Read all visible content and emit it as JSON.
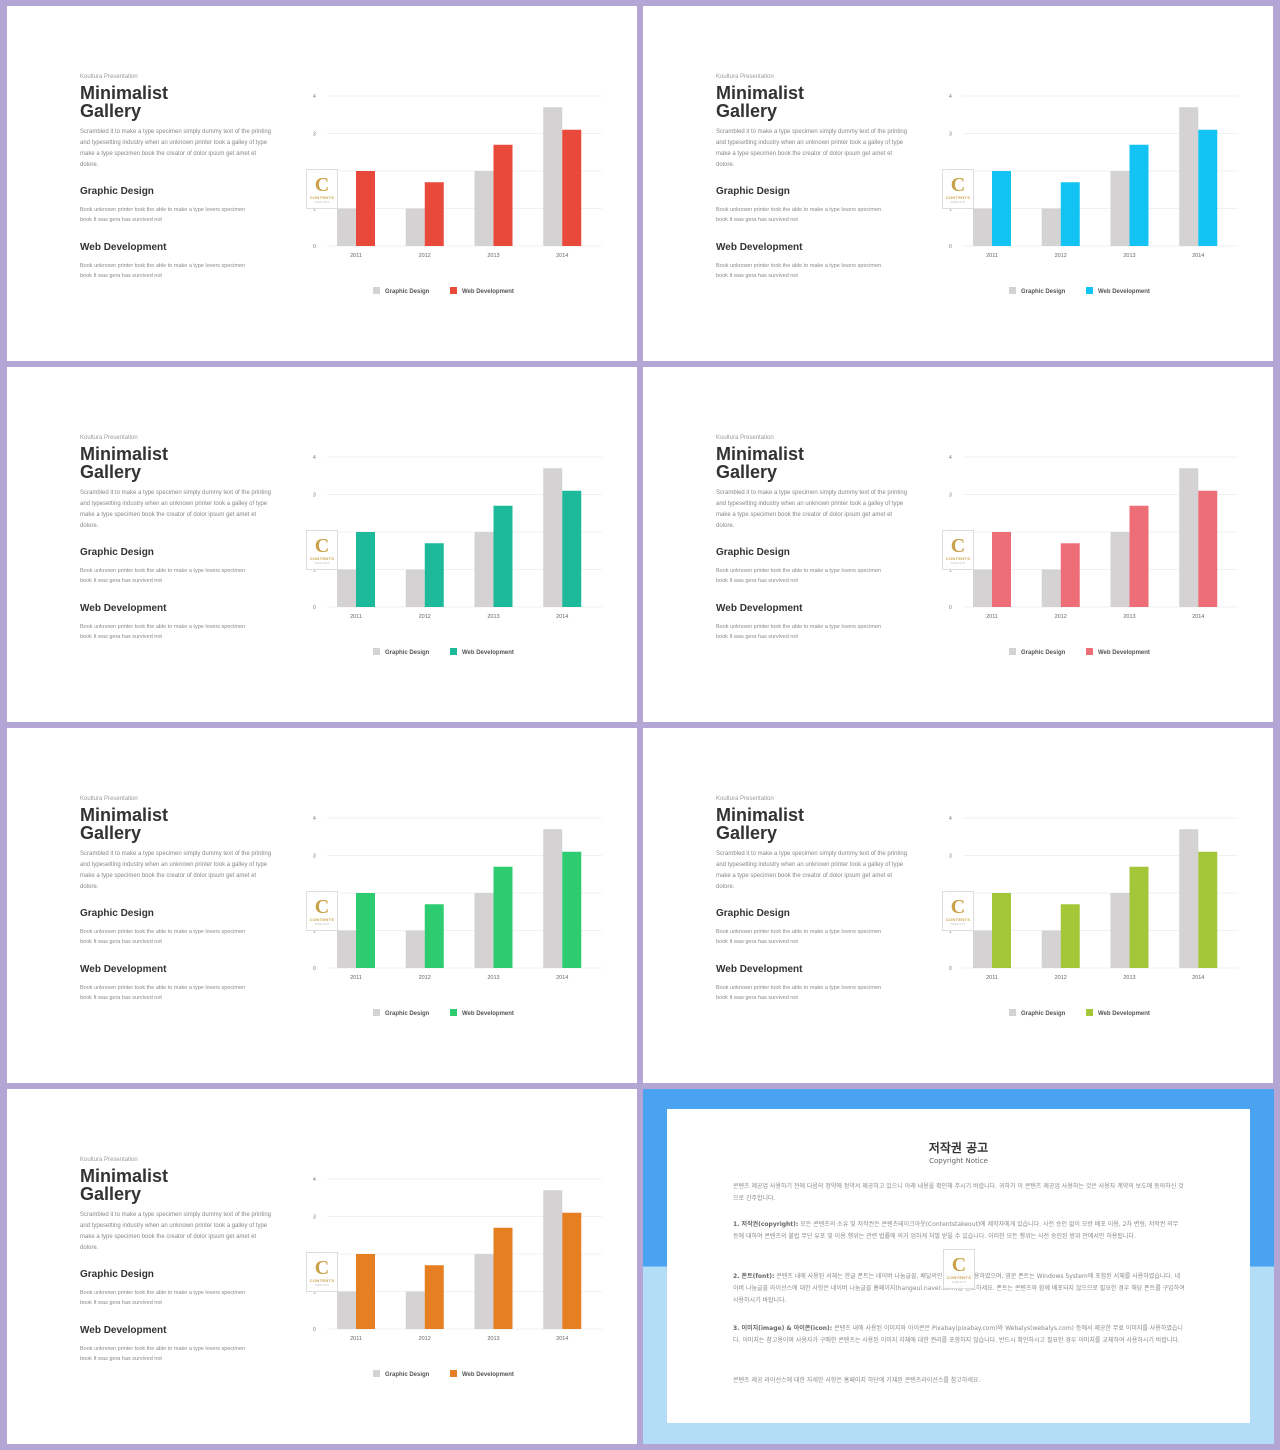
{
  "slide_common": {
    "brand": "Koultura Presentation",
    "title_line1": "Minimalist",
    "title_line2": "Gallery",
    "description": "Scrambled it to make a type specimen simply dummy text of the printing and typesetting industry when an unknown printer took a galley of type make a type specimen book the creator of dolor ipsum get amet et dolore.",
    "heading1": "Graphic Design",
    "text1": "Book unknown printer took the able to make a type lovers specimen book It was gera has survived  not",
    "heading2": "Web Development",
    "text2": "Book unknown printer took the able to make a type lovers specimen book It was gera has survived  not",
    "logo_letter": "C",
    "logo_text": "CONTENTS",
    "logo_sub": "TAKE OUT"
  },
  "accent_colors": [
    "#e8493b",
    "#12c3f4",
    "#1cb99a",
    "#ee6e78",
    "#2ecc71",
    "#a4c639",
    "#e67e22"
  ],
  "chart_data": {
    "type": "bar",
    "categories": [
      "2011",
      "2012",
      "2013",
      "2014"
    ],
    "series": [
      {
        "name": "Graphic Design",
        "values": [
          1.0,
          1.0,
          2.0,
          3.7
        ],
        "color": "#d4d2d2"
      },
      {
        "name": "Web Development",
        "values": [
          2.0,
          1.7,
          2.7,
          3.1
        ]
      }
    ],
    "ylim": [
      0,
      4
    ],
    "yticks": [
      "0",
      "1",
      "2",
      "3",
      "4"
    ],
    "grid": true,
    "legend": "bottom"
  },
  "notice": {
    "title": "저작권 공고",
    "subtitle": "Copyright Notice",
    "intro": "콘텐츠 제공업 사용하기 전에 다음의 정약에 정약서 제공하고 있으니 아래 내용을 확인해 주시기 바랍니다. 귀하가 이 콘텐츠 제공업 사용하는 것은 사용자 계약의 보도에 동의하신 것으로 간주합니다.",
    "p1_label": "1. 저작권(copyright):",
    "p1": "모든 콘텐츠의 소유 및 저작권은 콘텐츠테이크아웃(Contentstakeout)에 제작자에게 있습니다. 사전 승인 없이 모방 배포 이용, 2차 변형, 저작권 의무 등에 대하여 콘텐츠의 불법 무단 유포 및 이용 행위는 관련 법률에 의거 엄하게 처벌 받을 수 있습니다. 이러한 모든 행위는 사전 승인된 범위 안에서만 허용됩니다.",
    "p2_label": "2. 폰트(font):",
    "p2": "콘텐츠 내에 사용된 서체는 한글 폰트는 네이버 나눔글꼴, 배달의민족 서체를 사용하였으며, 영문 폰트는 Windows System에 포함된 서체를 사용하였습니다. 네이버 나눔글꼴 라이선스에 대한 사항은 네이버 나눔글꼴 홈페이지(hangeul.naver.com)를 참고하세요. 폰트는 콘텐츠와 함께 배포되지 않으므로 필요한 경우 해당 폰트를 구입하여 사용하시기 바랍니다.",
    "p3_label": "3. 이미지(image) & 아이콘(icon):",
    "p3": "콘텐츠 내에 사용된 이미지와 아이콘은 Pixabay(pixabay.com)와 Webalys(webalys.com) 등에서 제공한 무료 이미지를 사용하였습니다. 이미지는 참고용이며 사용자가 구매한 콘텐츠는 사용된 이미지 자체에 대한 권리를 포함하지 않습니다. 반드시 확인하시고 필요한 경우 이미지를 교체하여 사용하시기 바랍니다.",
    "outro": "콘텐츠 제공 라이선스에 대한 자세한 사항은 홈페이지 하단에 기재된 콘텐츠라이선스를 참고하세요."
  }
}
